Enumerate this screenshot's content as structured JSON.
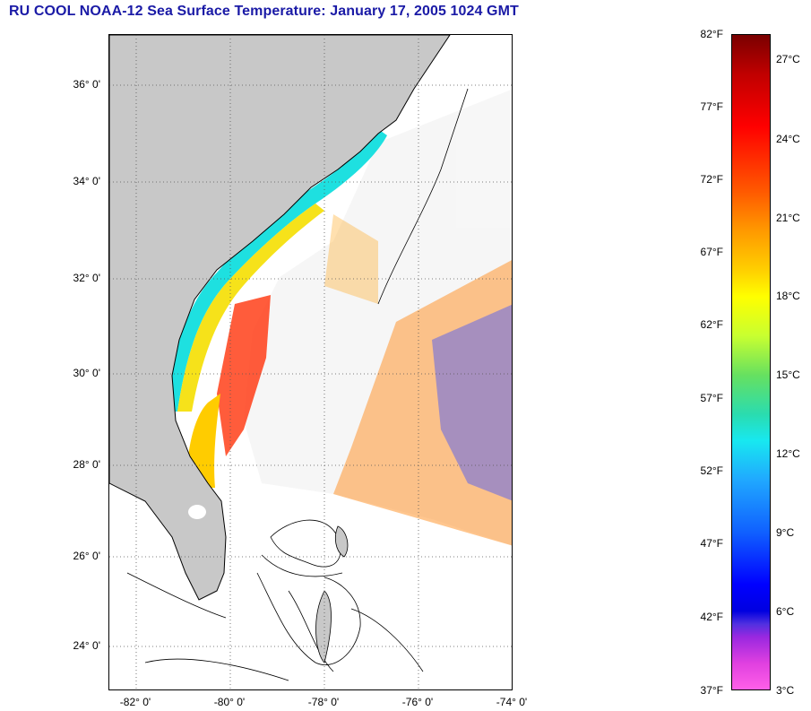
{
  "title": "RU COOL  NOAA-12  Sea Surface Temperature:  January 17, 2005 1024 GMT",
  "map": {
    "lat_labels": [
      "36° 0'",
      "34° 0'",
      "32° 0'",
      "30° 0'",
      "28° 0'",
      "26° 0'",
      "24° 0'"
    ],
    "lon_labels": [
      "-82° 0'",
      "-80° 0'",
      "-78° 0'",
      "-76° 0'",
      "-74° 0'"
    ],
    "colors": {
      "land": "#c8c8c8",
      "grid": "#555555",
      "coast": "#000000"
    }
  },
  "colorbar": {
    "fahrenheit_labels": [
      "82°F",
      "77°F",
      "72°F",
      "67°F",
      "62°F",
      "57°F",
      "52°F",
      "47°F",
      "42°F",
      "37°F"
    ],
    "celsius_labels": [
      "27°C",
      "24°C",
      "21°C",
      "18°C",
      "15°C",
      "12°C",
      "9°C",
      "6°C",
      "3°C"
    ]
  }
}
